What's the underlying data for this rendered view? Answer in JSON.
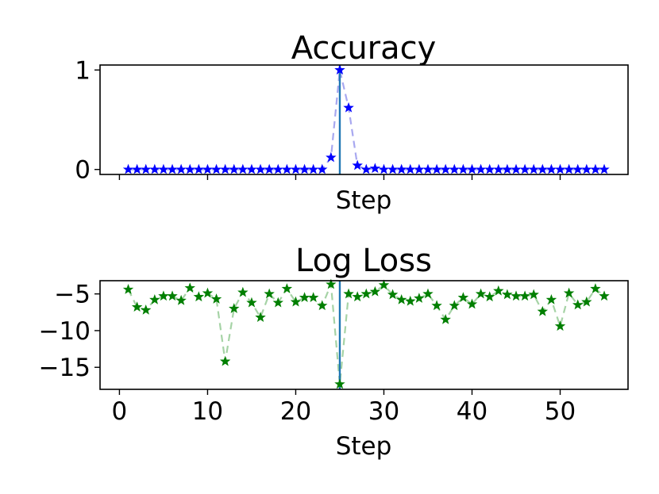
{
  "chart_data": [
    {
      "type": "line",
      "title": "Accuracy",
      "xlabel": "Step",
      "ylabel": "",
      "xlim": [
        -2.2,
        57.7
      ],
      "ylim": [
        -0.05,
        1.05
      ],
      "yticks": [
        0,
        1
      ],
      "ytick_labels": [
        "0",
        "1"
      ],
      "xticks": [
        0,
        10,
        20,
        30,
        40,
        50
      ],
      "show_xtick_labels": false,
      "marker": "star",
      "line_style": "dashed",
      "colors": {
        "marker": "#0000ff",
        "line": "#a8a8f0",
        "vline": "#1f77b4"
      },
      "vline_x": 25,
      "grid": false,
      "x": [
        1,
        2,
        3,
        4,
        5,
        6,
        7,
        8,
        9,
        10,
        11,
        12,
        13,
        14,
        15,
        16,
        17,
        18,
        19,
        20,
        21,
        22,
        23,
        24,
        25,
        26,
        27,
        28,
        29,
        30,
        31,
        32,
        33,
        34,
        35,
        36,
        37,
        38,
        39,
        40,
        41,
        42,
        43,
        44,
        45,
        46,
        47,
        48,
        49,
        50,
        51,
        52,
        53,
        54,
        55
      ],
      "series": [
        {
          "values": [
            0,
            0,
            0,
            0,
            0,
            0,
            0,
            0,
            0,
            0,
            0,
            0,
            0,
            0,
            0,
            0,
            0,
            0,
            0,
            0,
            0,
            0,
            0,
            0.12,
            1.0,
            0.62,
            0.04,
            0.0,
            0.01,
            0,
            0,
            0,
            0,
            0,
            0,
            0,
            0,
            0,
            0,
            0,
            0,
            0,
            0,
            0,
            0,
            0,
            0,
            0,
            0,
            0,
            0,
            0,
            0,
            0,
            0
          ]
        }
      ]
    },
    {
      "type": "line",
      "title": "Log Loss",
      "xlabel": "Step",
      "ylabel": "",
      "xlim": [
        -2.2,
        57.7
      ],
      "ylim": [
        -18,
        -3.2
      ],
      "yticks": [
        -5,
        -10,
        -15
      ],
      "ytick_labels": [
        "−5",
        "−10",
        "−15"
      ],
      "xticks": [
        0,
        10,
        20,
        30,
        40,
        50
      ],
      "xtick_labels": [
        "0",
        "10",
        "20",
        "30",
        "40",
        "50"
      ],
      "show_xtick_labels": true,
      "marker": "star",
      "line_style": "dashed",
      "colors": {
        "marker": "#007f00",
        "line": "#a6d3a6",
        "vline": "#1f77b4"
      },
      "vline_x": 25,
      "grid": false,
      "x": [
        1,
        2,
        3,
        4,
        5,
        6,
        7,
        8,
        9,
        10,
        11,
        12,
        13,
        14,
        15,
        16,
        17,
        18,
        19,
        20,
        21,
        22,
        23,
        24,
        25,
        26,
        27,
        28,
        29,
        30,
        31,
        32,
        33,
        34,
        35,
        36,
        37,
        38,
        39,
        40,
        41,
        42,
        43,
        44,
        45,
        46,
        47,
        48,
        49,
        50,
        51,
        52,
        53,
        54,
        55
      ],
      "series": [
        {
          "values": [
            -4.4,
            -6.8,
            -7.2,
            -5.8,
            -5.3,
            -5.3,
            -5.9,
            -4.2,
            -5.4,
            -4.9,
            -5.7,
            -14.2,
            -7.0,
            -4.8,
            -6.2,
            -8.2,
            -5.0,
            -6.2,
            -4.3,
            -6.1,
            -5.5,
            -5.5,
            -6.6,
            -3.7,
            -17.3,
            -5.0,
            -5.4,
            -5.0,
            -4.7,
            -3.8,
            -5.1,
            -5.8,
            -6.0,
            -5.6,
            -5.0,
            -6.6,
            -8.5,
            -6.6,
            -5.5,
            -6.4,
            -5.0,
            -5.4,
            -4.6,
            -5.1,
            -5.3,
            -5.3,
            -5.1,
            -7.4,
            -5.8,
            -9.4,
            -4.9,
            -6.5,
            -6.1,
            -4.3,
            -5.3
          ]
        }
      ]
    }
  ]
}
